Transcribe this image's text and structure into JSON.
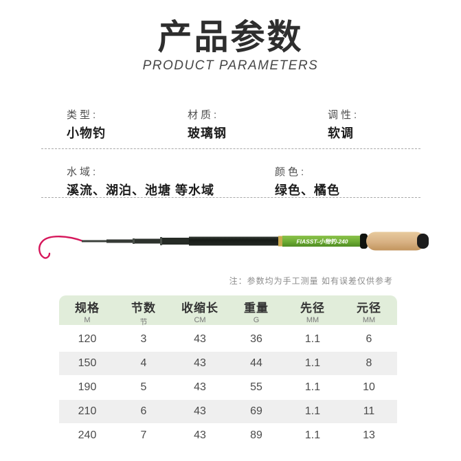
{
  "title": {
    "zh": "产品参数",
    "en": "PRODUCT PARAMETERS"
  },
  "specs": [
    {
      "label": "类型:",
      "value": "小物钓"
    },
    {
      "label": "材质:",
      "value": "玻璃钢"
    },
    {
      "label": "调性:",
      "value": "软调"
    },
    {
      "label": "水域:",
      "value": "溪流、湖泊、池塘 等水域"
    },
    {
      "label": "颜色:",
      "value": "绿色、橘色"
    }
  ],
  "rod": {
    "label": "FIASST-小物钓-240"
  },
  "note": "注：参数均为手工测量 如有误差仅供参考",
  "table": {
    "columns": [
      {
        "name": "规格",
        "unit": "M"
      },
      {
        "name": "节数",
        "unit": "节"
      },
      {
        "name": "收缩长",
        "unit": "CM"
      },
      {
        "name": "重量",
        "unit": "G"
      },
      {
        "name": "先径",
        "unit": "MM"
      },
      {
        "name": "元径",
        "unit": "MM"
      }
    ],
    "rows": [
      [
        "120",
        "3",
        "43",
        "36",
        "1.1",
        "6"
      ],
      [
        "150",
        "4",
        "43",
        "44",
        "1.1",
        "8"
      ],
      [
        "190",
        "5",
        "43",
        "55",
        "1.1",
        "10"
      ],
      [
        "210",
        "6",
        "43",
        "69",
        "1.1",
        "11"
      ],
      [
        "240",
        "7",
        "43",
        "89",
        "1.1",
        "13"
      ]
    ]
  },
  "colors": {
    "header_green": "#e1edda",
    "row_alt_gray": "#efefef",
    "rod_green": "#6fae35",
    "cork_tan": "#d8b183",
    "tip_string_red": "#d6175b",
    "title_dark": "#2e2e2e"
  }
}
